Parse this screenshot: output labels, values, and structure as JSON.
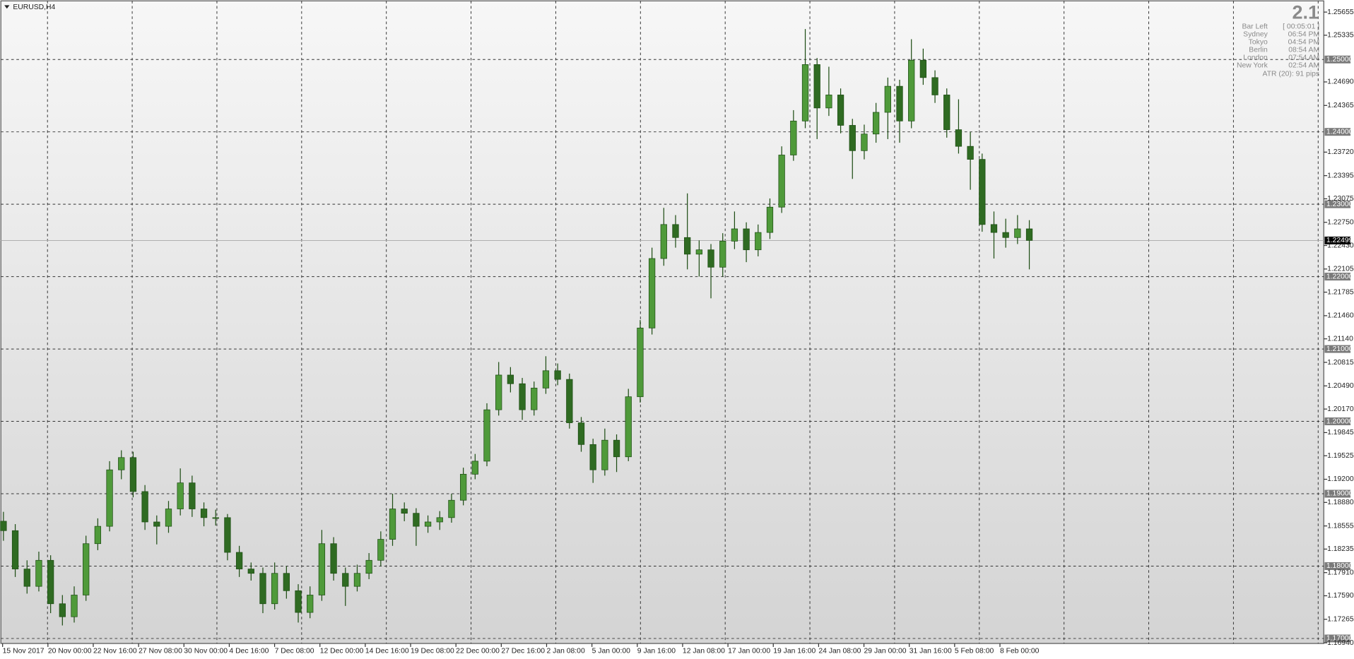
{
  "header": {
    "symbol": "EURUSD,H4"
  },
  "info_panel": {
    "version": "2.1",
    "bar_left_label": "Bar Left",
    "bar_left": "[ 00:05:01 ]",
    "clocks": [
      {
        "city": "Sydney",
        "time": "06:54 PM"
      },
      {
        "city": "Tokyo",
        "time": "04:54 PM"
      },
      {
        "city": "Berlin",
        "time": "08:54 AM"
      },
      {
        "city": "London",
        "time": "07:54 AM"
      },
      {
        "city": "New York",
        "time": "02:54 AM"
      }
    ],
    "atr": "ATR (20): 91 pips"
  },
  "chart_data": {
    "type": "candlestick",
    "up_color": "#4f9a3a",
    "down_color": "#2f6b22",
    "wick_color": "#1e4d14",
    "grid": true,
    "ylim": [
      1.16931,
      1.2581
    ],
    "yticks": [
      1.25655,
      1.25335,
      {
        "value": 1.2469,
        "label": "1.24690"
      },
      1.24365,
      {
        "value": 1.2372,
        "label": "1.23720"
      },
      1.23395,
      1.23075,
      {
        "value": 1.2275,
        "label": "1.22750"
      },
      {
        "value": 1.2243,
        "label": "1.22430"
      },
      1.22105,
      1.21785,
      {
        "value": 1.2146,
        "label": "1.21460"
      },
      {
        "value": 1.2114,
        "label": "1.21140"
      },
      1.20815,
      {
        "value": 1.2049,
        "label": "1.20490"
      },
      {
        "value": 1.2017,
        "label": "1.20170"
      },
      1.19845,
      1.19525,
      {
        "value": 1.192,
        "label": "1.19200"
      },
      {
        "value": 1.1888,
        "label": "1.18880"
      },
      1.18555,
      1.18235,
      {
        "value": 1.1791,
        "label": "1.17910"
      },
      {
        "value": 1.1759,
        "label": "1.17590"
      },
      1.17265,
      {
        "value": 1.1694,
        "label": "1.16940"
      }
    ],
    "levels": [
      {
        "value": 1.25,
        "label": "1.25000"
      },
      {
        "value": 1.24,
        "label": "1.24000"
      },
      {
        "value": 1.23,
        "label": "1.23000"
      },
      {
        "value": 1.22,
        "label": "1.22000"
      },
      {
        "value": 1.21,
        "label": "1.21000"
      },
      {
        "value": 1.2,
        "label": "1.20000"
      },
      {
        "value": 1.19,
        "label": "1.19000"
      },
      {
        "value": 1.18,
        "label": "1.18000"
      },
      {
        "value": 1.17,
        "label": "1.17000"
      }
    ],
    "last_price": 1.22499,
    "time_labels": [
      "15 Nov 2017",
      "20 Nov 00:00",
      "22 Nov 16:00",
      "27 Nov 08:00",
      "30 Nov 00:00",
      "4 Dec 16:00",
      "7 Dec 08:00",
      "12 Dec 00:00",
      "14 Dec 16:00",
      "19 Dec 08:00",
      "22 Dec 00:00",
      "27 Dec 16:00",
      "2 Jan 08:00",
      "5 Jan 00:00",
      "9 Jan 16:00",
      "12 Jan 08:00",
      "17 Jan 00:00",
      "19 Jan 16:00",
      "24 Jan 08:00",
      "29 Jan 00:00",
      "31 Jan 16:00",
      "5 Feb 08:00",
      "8 Feb 00:00"
    ],
    "ohlc": [
      [
        1.1862,
        1.1875,
        1.1835,
        1.1849
      ],
      [
        1.1849,
        1.1858,
        1.1785,
        1.1796
      ],
      [
        1.1796,
        1.1808,
        1.1762,
        1.1772
      ],
      [
        1.1772,
        1.182,
        1.1765,
        1.1808
      ],
      [
        1.1808,
        1.1815,
        1.1735,
        1.1748
      ],
      [
        1.1748,
        1.176,
        1.1718,
        1.173
      ],
      [
        1.173,
        1.1772,
        1.1722,
        1.176
      ],
      [
        1.176,
        1.1842,
        1.1752,
        1.1831
      ],
      [
        1.1831,
        1.1866,
        1.1822,
        1.1855
      ],
      [
        1.1855,
        1.1945,
        1.1848,
        1.1933
      ],
      [
        1.1933,
        1.196,
        1.192,
        1.195
      ],
      [
        1.195,
        1.1958,
        1.1895,
        1.1903
      ],
      [
        1.1903,
        1.1912,
        1.185,
        1.1861
      ],
      [
        1.1861,
        1.187,
        1.183,
        1.1855
      ],
      [
        1.1855,
        1.189,
        1.1846,
        1.1879
      ],
      [
        1.1879,
        1.1935,
        1.187,
        1.1915
      ],
      [
        1.1915,
        1.1925,
        1.1868,
        1.1879
      ],
      [
        1.1879,
        1.1888,
        1.1855,
        1.1867
      ],
      [
        1.1867,
        1.1878,
        1.1856,
        1.1867
      ],
      [
        1.1867,
        1.1872,
        1.1808,
        1.1819
      ],
      [
        1.1819,
        1.1828,
        1.1785,
        1.1796
      ],
      [
        1.1796,
        1.1805,
        1.178,
        1.179
      ],
      [
        1.179,
        1.1798,
        1.1735,
        1.1748
      ],
      [
        1.1748,
        1.1805,
        1.174,
        1.179
      ],
      [
        1.179,
        1.18,
        1.1755,
        1.1766
      ],
      [
        1.1766,
        1.1775,
        1.1722,
        1.1736
      ],
      [
        1.1736,
        1.1772,
        1.1728,
        1.176
      ],
      [
        1.176,
        1.185,
        1.1752,
        1.1831
      ],
      [
        1.1831,
        1.184,
        1.178,
        1.179
      ],
      [
        1.179,
        1.1798,
        1.1745,
        1.1772
      ],
      [
        1.1772,
        1.1802,
        1.1765,
        1.179
      ],
      [
        1.179,
        1.1818,
        1.1782,
        1.1808
      ],
      [
        1.1808,
        1.1848,
        1.18,
        1.1837
      ],
      [
        1.1837,
        1.19,
        1.1828,
        1.1879
      ],
      [
        1.1879,
        1.1888,
        1.1862,
        1.1873
      ],
      [
        1.1873,
        1.188,
        1.1828,
        1.1855
      ],
      [
        1.1855,
        1.187,
        1.1846,
        1.1861
      ],
      [
        1.1861,
        1.1876,
        1.185,
        1.1867
      ],
      [
        1.1867,
        1.19,
        1.186,
        1.1891
      ],
      [
        1.1891,
        1.1936,
        1.1884,
        1.1927
      ],
      [
        1.1927,
        1.1955,
        1.192,
        1.1945
      ],
      [
        1.1945,
        1.2025,
        1.1938,
        1.2016
      ],
      [
        1.2016,
        1.2082,
        1.2008,
        1.2064
      ],
      [
        1.2064,
        1.2075,
        1.204,
        1.2052
      ],
      [
        1.2052,
        1.206,
        1.2002,
        1.2016
      ],
      [
        1.2016,
        1.2055,
        1.2008,
        1.2046
      ],
      [
        1.2046,
        1.209,
        1.2038,
        1.207
      ],
      [
        1.207,
        1.208,
        1.205,
        1.2058
      ],
      [
        1.2058,
        1.2066,
        1.199,
        1.1998
      ],
      [
        1.1998,
        1.2006,
        1.1958,
        1.1968
      ],
      [
        1.1968,
        1.1976,
        1.1915,
        1.1933
      ],
      [
        1.1933,
        1.199,
        1.1925,
        1.1974
      ],
      [
        1.1974,
        1.1982,
        1.193,
        1.1951
      ],
      [
        1.1951,
        1.2045,
        1.1945,
        1.2034
      ],
      [
        1.2034,
        1.214,
        1.2026,
        1.2129
      ],
      [
        1.2129,
        1.224,
        1.212,
        1.2225
      ],
      [
        1.2225,
        1.2295,
        1.2215,
        1.2272
      ],
      [
        1.2272,
        1.2285,
        1.224,
        1.2254
      ],
      [
        1.2254,
        1.2315,
        1.221,
        1.2231
      ],
      [
        1.2231,
        1.225,
        1.22,
        1.2237
      ],
      [
        1.2237,
        1.2245,
        1.217,
        1.2213
      ],
      [
        1.2213,
        1.226,
        1.22,
        1.2249
      ],
      [
        1.2249,
        1.229,
        1.2238,
        1.2266
      ],
      [
        1.2266,
        1.2275,
        1.222,
        1.2237
      ],
      [
        1.2237,
        1.2272,
        1.2228,
        1.2261
      ],
      [
        1.2261,
        1.2308,
        1.2252,
        1.2296
      ],
      [
        1.2296,
        1.238,
        1.2288,
        1.2368
      ],
      [
        1.2368,
        1.243,
        1.236,
        1.2415
      ],
      [
        1.2415,
        1.2542,
        1.2405,
        1.2493
      ],
      [
        1.2493,
        1.2502,
        1.239,
        1.2433
      ],
      [
        1.2433,
        1.249,
        1.2422,
        1.2451
      ],
      [
        1.2451,
        1.246,
        1.2398,
        1.2409
      ],
      [
        1.2409,
        1.2418,
        1.2335,
        1.2374
      ],
      [
        1.2374,
        1.241,
        1.2362,
        1.2397
      ],
      [
        1.2397,
        1.244,
        1.2385,
        1.2427
      ],
      [
        1.2427,
        1.2475,
        1.239,
        1.2463
      ],
      [
        1.2463,
        1.2472,
        1.2385,
        1.2415
      ],
      [
        1.2415,
        1.2528,
        1.2405,
        1.2499
      ],
      [
        1.2499,
        1.2515,
        1.2465,
        1.2475
      ],
      [
        1.2475,
        1.2485,
        1.244,
        1.2451
      ],
      [
        1.2451,
        1.246,
        1.2392,
        1.2403
      ],
      [
        1.2403,
        1.2445,
        1.237,
        1.238
      ],
      [
        1.238,
        1.24,
        1.232,
        1.2362
      ],
      [
        1.2362,
        1.237,
        1.2262,
        1.2272
      ],
      [
        1.2272,
        1.229,
        1.2225,
        1.2261
      ],
      [
        1.2261,
        1.228,
        1.224,
        1.2254
      ],
      [
        1.2254,
        1.2285,
        1.2245,
        1.2266
      ],
      [
        1.2266,
        1.2278,
        1.221,
        1.225
      ]
    ]
  }
}
